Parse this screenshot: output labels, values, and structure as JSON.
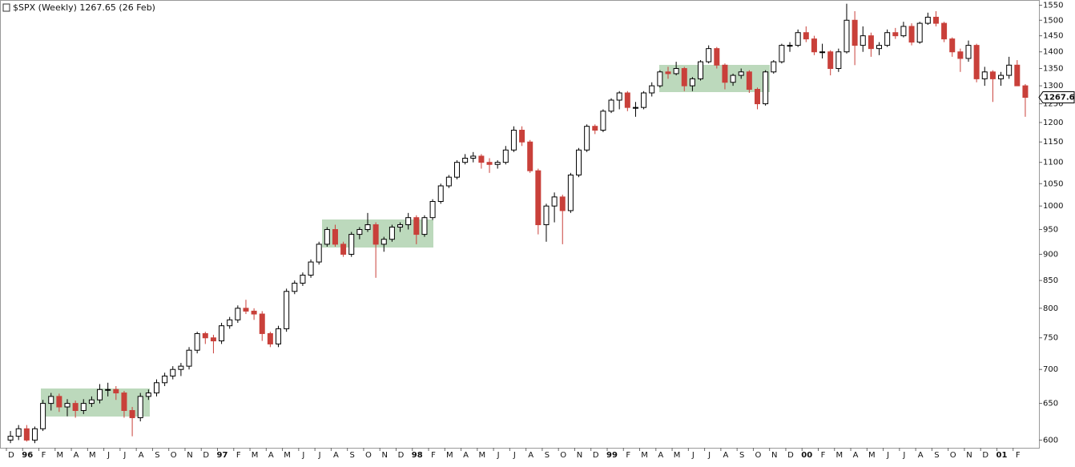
{
  "chart_data": {
    "type": "candlestick",
    "title": "$SPX (Weekly) 1267.65 (26 Feb)",
    "log_scale": true,
    "up_color": "#ffffff",
    "down_color": "#c9403a",
    "last": 1267.65,
    "categories": [
      "D",
      "96",
      "F",
      "M",
      "A",
      "M",
      "J",
      "J",
      "A",
      "S",
      "O",
      "N",
      "D",
      "97",
      "F",
      "M",
      "A",
      "M",
      "J",
      "J",
      "A",
      "S",
      "O",
      "N",
      "D",
      "98",
      "F",
      "M",
      "A",
      "M",
      "J",
      "J",
      "A",
      "S",
      "O",
      "N",
      "D",
      "99",
      "F",
      "M",
      "A",
      "M",
      "J",
      "J",
      "A",
      "S",
      "O",
      "N",
      "D",
      "00",
      "F",
      "M",
      "A",
      "M",
      "J",
      "J",
      "A",
      "S",
      "O",
      "N",
      "D",
      "01",
      "F"
    ],
    "ylim": [
      590,
      1565
    ],
    "yticks": [
      600,
      650,
      700,
      750,
      800,
      850,
      900,
      950,
      1000,
      1050,
      1100,
      1150,
      1200,
      1250,
      1300,
      1350,
      1400,
      1450,
      1500,
      1550
    ],
    "candles": [
      [
        600,
        612,
        596,
        605
      ],
      [
        605,
        620,
        600,
        615
      ],
      [
        615,
        620,
        598,
        600
      ],
      [
        600,
        618,
        596,
        615
      ],
      [
        615,
        655,
        612,
        650
      ],
      [
        650,
        665,
        640,
        660
      ],
      [
        660,
        664,
        638,
        645
      ],
      [
        645,
        656,
        632,
        650
      ],
      [
        650,
        654,
        630,
        640
      ],
      [
        640,
        656,
        635,
        650
      ],
      [
        650,
        660,
        645,
        655
      ],
      [
        655,
        678,
        650,
        670
      ],
      [
        670,
        680,
        660,
        670
      ],
      [
        670,
        675,
        655,
        665
      ],
      [
        665,
        668,
        630,
        640
      ],
      [
        640,
        645,
        605,
        630
      ],
      [
        630,
        665,
        625,
        660
      ],
      [
        660,
        670,
        655,
        665
      ],
      [
        665,
        685,
        660,
        680
      ],
      [
        680,
        695,
        675,
        690
      ],
      [
        690,
        705,
        685,
        700
      ],
      [
        700,
        710,
        690,
        705
      ],
      [
        705,
        735,
        700,
        730
      ],
      [
        730,
        760,
        725,
        757
      ],
      [
        757,
        760,
        740,
        750
      ],
      [
        750,
        755,
        725,
        745
      ],
      [
        745,
        775,
        740,
        770
      ],
      [
        770,
        785,
        765,
        780
      ],
      [
        780,
        805,
        775,
        800
      ],
      [
        800,
        815,
        790,
        795
      ],
      [
        795,
        800,
        780,
        790
      ],
      [
        790,
        795,
        745,
        757
      ],
      [
        757,
        760,
        735,
        740
      ],
      [
        740,
        770,
        735,
        765
      ],
      [
        765,
        835,
        760,
        830
      ],
      [
        830,
        850,
        825,
        845
      ],
      [
        845,
        865,
        840,
        860
      ],
      [
        860,
        890,
        855,
        885
      ],
      [
        885,
        925,
        880,
        920
      ],
      [
        920,
        955,
        915,
        950
      ],
      [
        950,
        960,
        915,
        920
      ],
      [
        920,
        925,
        895,
        900
      ],
      [
        900,
        945,
        895,
        940
      ],
      [
        940,
        955,
        930,
        950
      ],
      [
        950,
        985,
        945,
        960
      ],
      [
        960,
        965,
        855,
        920
      ],
      [
        920,
        935,
        905,
        930
      ],
      [
        930,
        960,
        925,
        955
      ],
      [
        955,
        965,
        945,
        960
      ],
      [
        960,
        985,
        950,
        975
      ],
      [
        975,
        980,
        920,
        940
      ],
      [
        940,
        980,
        935,
        975
      ],
      [
        975,
        1015,
        970,
        1010
      ],
      [
        1010,
        1050,
        1005,
        1045
      ],
      [
        1045,
        1070,
        1040,
        1065
      ],
      [
        1065,
        1105,
        1060,
        1100
      ],
      [
        1100,
        1120,
        1095,
        1110
      ],
      [
        1110,
        1125,
        1100,
        1115
      ],
      [
        1115,
        1120,
        1085,
        1100
      ],
      [
        1100,
        1110,
        1075,
        1095
      ],
      [
        1095,
        1105,
        1085,
        1100
      ],
      [
        1100,
        1140,
        1095,
        1130
      ],
      [
        1130,
        1190,
        1125,
        1180
      ],
      [
        1180,
        1190,
        1140,
        1150
      ],
      [
        1150,
        1155,
        1075,
        1080
      ],
      [
        1080,
        1085,
        940,
        960
      ],
      [
        960,
        1005,
        925,
        1000
      ],
      [
        1000,
        1030,
        965,
        1020
      ],
      [
        1020,
        1025,
        920,
        990
      ],
      [
        990,
        1075,
        985,
        1070
      ],
      [
        1070,
        1135,
        1065,
        1130
      ],
      [
        1130,
        1195,
        1125,
        1190
      ],
      [
        1190,
        1195,
        1170,
        1180
      ],
      [
        1180,
        1235,
        1175,
        1230
      ],
      [
        1230,
        1265,
        1225,
        1260
      ],
      [
        1260,
        1285,
        1235,
        1280
      ],
      [
        1280,
        1285,
        1230,
        1240
      ],
      [
        1240,
        1255,
        1215,
        1240
      ],
      [
        1240,
        1285,
        1235,
        1280
      ],
      [
        1280,
        1310,
        1270,
        1300
      ],
      [
        1300,
        1345,
        1295,
        1340
      ],
      [
        1340,
        1355,
        1320,
        1335
      ],
      [
        1335,
        1370,
        1330,
        1350
      ],
      [
        1350,
        1355,
        1285,
        1300
      ],
      [
        1300,
        1325,
        1285,
        1320
      ],
      [
        1320,
        1375,
        1315,
        1370
      ],
      [
        1370,
        1420,
        1365,
        1410
      ],
      [
        1410,
        1415,
        1350,
        1360
      ],
      [
        1360,
        1365,
        1290,
        1310
      ],
      [
        1310,
        1335,
        1300,
        1330
      ],
      [
        1330,
        1350,
        1320,
        1340
      ],
      [
        1340,
        1345,
        1280,
        1290
      ],
      [
        1290,
        1295,
        1235,
        1250
      ],
      [
        1250,
        1345,
        1245,
        1340
      ],
      [
        1340,
        1375,
        1335,
        1370
      ],
      [
        1370,
        1425,
        1365,
        1420
      ],
      [
        1420,
        1430,
        1400,
        1420
      ],
      [
        1420,
        1470,
        1415,
        1460
      ],
      [
        1460,
        1480,
        1430,
        1440
      ],
      [
        1440,
        1450,
        1390,
        1400
      ],
      [
        1400,
        1425,
        1380,
        1400
      ],
      [
        1400,
        1405,
        1330,
        1350
      ],
      [
        1350,
        1410,
        1340,
        1400
      ],
      [
        1400,
        1555,
        1395,
        1500
      ],
      [
        1500,
        1530,
        1360,
        1420
      ],
      [
        1420,
        1480,
        1400,
        1450
      ],
      [
        1450,
        1460,
        1385,
        1410
      ],
      [
        1410,
        1430,
        1390,
        1420
      ],
      [
        1420,
        1470,
        1415,
        1460
      ],
      [
        1460,
        1475,
        1440,
        1450
      ],
      [
        1450,
        1495,
        1445,
        1480
      ],
      [
        1480,
        1490,
        1420,
        1430
      ],
      [
        1430,
        1495,
        1425,
        1490
      ],
      [
        1490,
        1525,
        1485,
        1510
      ],
      [
        1510,
        1530,
        1480,
        1490
      ],
      [
        1490,
        1495,
        1430,
        1440
      ],
      [
        1440,
        1445,
        1385,
        1400
      ],
      [
        1400,
        1410,
        1340,
        1380
      ],
      [
        1380,
        1435,
        1370,
        1420
      ],
      [
        1420,
        1425,
        1310,
        1320
      ],
      [
        1320,
        1355,
        1300,
        1340
      ],
      [
        1340,
        1345,
        1255,
        1320
      ],
      [
        1320,
        1340,
        1300,
        1330
      ],
      [
        1330,
        1385,
        1320,
        1360
      ],
      [
        1360,
        1375,
        1300,
        1300
      ],
      [
        1300,
        1305,
        1215,
        1267.65
      ]
    ]
  }
}
